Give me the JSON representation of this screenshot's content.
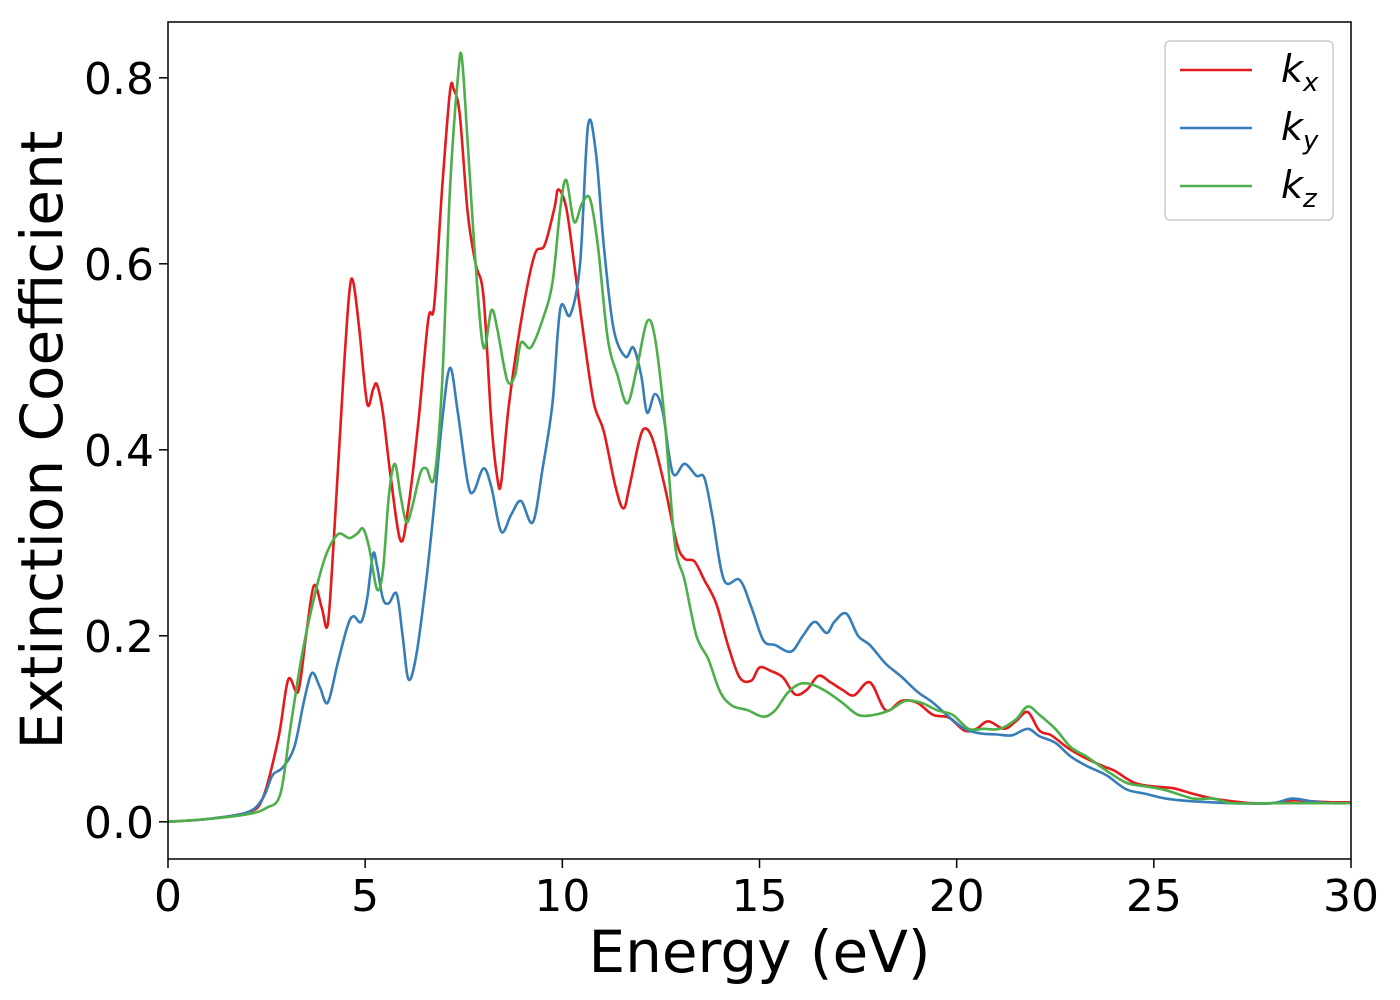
{
  "chart_data": {
    "type": "line",
    "title": "",
    "xlabel": "Energy (eV)",
    "ylabel": "Extinction Coefficient",
    "xlim": [
      0,
      30
    ],
    "ylim": [
      -0.04,
      0.86
    ],
    "xticks": [
      0,
      5,
      10,
      15,
      20,
      25,
      30
    ],
    "xtick_labels": [
      "0",
      "5",
      "10",
      "15",
      "20",
      "25",
      "30"
    ],
    "yticks": [
      0.0,
      0.2,
      0.4,
      0.6,
      0.8
    ],
    "ytick_labels": [
      "0.0",
      "0.2",
      "0.4",
      "0.6",
      "0.8"
    ],
    "grid": false,
    "legend_position": "top-right",
    "series": [
      {
        "name": "k",
        "subscript": "x",
        "color": "#e41a1c",
        "points": [
          [
            0,
            0.0
          ],
          [
            1,
            0.003
          ],
          [
            2,
            0.01
          ],
          [
            2.4,
            0.025
          ],
          [
            2.8,
            0.09
          ],
          [
            3.05,
            0.153
          ],
          [
            3.3,
            0.14
          ],
          [
            3.5,
            0.2
          ],
          [
            3.7,
            0.254
          ],
          [
            3.9,
            0.23
          ],
          [
            4.05,
            0.212
          ],
          [
            4.2,
            0.3
          ],
          [
            4.45,
            0.48
          ],
          [
            4.6,
            0.57
          ],
          [
            4.7,
            0.58
          ],
          [
            4.85,
            0.53
          ],
          [
            5.05,
            0.45
          ],
          [
            5.2,
            0.465
          ],
          [
            5.3,
            0.47
          ],
          [
            5.45,
            0.44
          ],
          [
            5.65,
            0.37
          ],
          [
            5.9,
            0.302
          ],
          [
            6.1,
            0.34
          ],
          [
            6.35,
            0.43
          ],
          [
            6.6,
            0.54
          ],
          [
            6.75,
            0.555
          ],
          [
            6.95,
            0.68
          ],
          [
            7.15,
            0.785
          ],
          [
            7.25,
            0.787
          ],
          [
            7.4,
            0.76
          ],
          [
            7.6,
            0.655
          ],
          [
            7.8,
            0.6
          ],
          [
            8.0,
            0.565
          ],
          [
            8.2,
            0.43
          ],
          [
            8.35,
            0.37
          ],
          [
            8.45,
            0.365
          ],
          [
            8.65,
            0.45
          ],
          [
            9.0,
            0.55
          ],
          [
            9.3,
            0.61
          ],
          [
            9.55,
            0.62
          ],
          [
            9.8,
            0.66
          ],
          [
            9.9,
            0.68
          ],
          [
            10.1,
            0.66
          ],
          [
            10.3,
            0.6
          ],
          [
            10.55,
            0.52
          ],
          [
            10.8,
            0.45
          ],
          [
            11.05,
            0.42
          ],
          [
            11.35,
            0.36
          ],
          [
            11.55,
            0.337
          ],
          [
            11.7,
            0.36
          ],
          [
            11.95,
            0.41
          ],
          [
            12.1,
            0.423
          ],
          [
            12.3,
            0.41
          ],
          [
            12.6,
            0.36
          ],
          [
            12.9,
            0.3
          ],
          [
            13.1,
            0.283
          ],
          [
            13.35,
            0.28
          ],
          [
            13.6,
            0.26
          ],
          [
            13.9,
            0.235
          ],
          [
            14.2,
            0.19
          ],
          [
            14.5,
            0.155
          ],
          [
            14.8,
            0.152
          ],
          [
            15.0,
            0.166
          ],
          [
            15.3,
            0.162
          ],
          [
            15.6,
            0.155
          ],
          [
            15.9,
            0.137
          ],
          [
            16.2,
            0.142
          ],
          [
            16.5,
            0.157
          ],
          [
            16.8,
            0.15
          ],
          [
            17.1,
            0.142
          ],
          [
            17.4,
            0.136
          ],
          [
            17.8,
            0.15
          ],
          [
            18.2,
            0.12
          ],
          [
            18.6,
            0.13
          ],
          [
            19.0,
            0.128
          ],
          [
            19.4,
            0.115
          ],
          [
            19.8,
            0.112
          ],
          [
            20.2,
            0.098
          ],
          [
            20.5,
            0.1
          ],
          [
            20.8,
            0.108
          ],
          [
            21.2,
            0.1
          ],
          [
            21.5,
            0.108
          ],
          [
            21.8,
            0.118
          ],
          [
            22.1,
            0.098
          ],
          [
            22.4,
            0.093
          ],
          [
            22.8,
            0.08
          ],
          [
            23.2,
            0.07
          ],
          [
            23.7,
            0.06
          ],
          [
            24.0,
            0.055
          ],
          [
            24.5,
            0.042
          ],
          [
            25.0,
            0.038
          ],
          [
            25.5,
            0.036
          ],
          [
            26.0,
            0.03
          ],
          [
            26.5,
            0.025
          ],
          [
            27.0,
            0.022
          ],
          [
            27.5,
            0.02
          ],
          [
            28.0,
            0.02
          ],
          [
            28.5,
            0.023
          ],
          [
            29.0,
            0.022
          ],
          [
            29.5,
            0.021
          ],
          [
            30.0,
            0.021
          ]
        ]
      },
      {
        "name": "k",
        "subscript": "y",
        "color": "#377eb8",
        "points": [
          [
            0,
            0.0
          ],
          [
            1,
            0.003
          ],
          [
            2,
            0.01
          ],
          [
            2.4,
            0.025
          ],
          [
            2.65,
            0.05
          ],
          [
            2.9,
            0.058
          ],
          [
            3.2,
            0.08
          ],
          [
            3.45,
            0.13
          ],
          [
            3.65,
            0.16
          ],
          [
            3.85,
            0.145
          ],
          [
            4.05,
            0.128
          ],
          [
            4.3,
            0.17
          ],
          [
            4.55,
            0.21
          ],
          [
            4.7,
            0.221
          ],
          [
            4.9,
            0.215
          ],
          [
            5.05,
            0.24
          ],
          [
            5.2,
            0.288
          ],
          [
            5.3,
            0.275
          ],
          [
            5.45,
            0.24
          ],
          [
            5.6,
            0.235
          ],
          [
            5.8,
            0.245
          ],
          [
            5.95,
            0.2
          ],
          [
            6.1,
            0.153
          ],
          [
            6.3,
            0.18
          ],
          [
            6.55,
            0.26
          ],
          [
            6.75,
            0.34
          ],
          [
            6.95,
            0.43
          ],
          [
            7.15,
            0.488
          ],
          [
            7.35,
            0.44
          ],
          [
            7.6,
            0.365
          ],
          [
            7.75,
            0.355
          ],
          [
            8.0,
            0.38
          ],
          [
            8.2,
            0.36
          ],
          [
            8.45,
            0.312
          ],
          [
            8.7,
            0.33
          ],
          [
            8.95,
            0.345
          ],
          [
            9.25,
            0.322
          ],
          [
            9.5,
            0.38
          ],
          [
            9.75,
            0.45
          ],
          [
            9.95,
            0.552
          ],
          [
            10.2,
            0.545
          ],
          [
            10.45,
            0.6
          ],
          [
            10.65,
            0.748
          ],
          [
            10.85,
            0.72
          ],
          [
            11.05,
            0.62
          ],
          [
            11.3,
            0.53
          ],
          [
            11.6,
            0.5
          ],
          [
            11.8,
            0.51
          ],
          [
            12.0,
            0.48
          ],
          [
            12.15,
            0.44
          ],
          [
            12.35,
            0.46
          ],
          [
            12.55,
            0.44
          ],
          [
            12.8,
            0.375
          ],
          [
            13.1,
            0.385
          ],
          [
            13.4,
            0.372
          ],
          [
            13.6,
            0.37
          ],
          [
            13.8,
            0.33
          ],
          [
            14.1,
            0.26
          ],
          [
            14.5,
            0.26
          ],
          [
            14.8,
            0.23
          ],
          [
            15.1,
            0.195
          ],
          [
            15.4,
            0.19
          ],
          [
            15.8,
            0.183
          ],
          [
            16.1,
            0.2
          ],
          [
            16.4,
            0.215
          ],
          [
            16.7,
            0.203
          ],
          [
            16.9,
            0.215
          ],
          [
            17.2,
            0.224
          ],
          [
            17.5,
            0.2
          ],
          [
            17.8,
            0.19
          ],
          [
            18.2,
            0.17
          ],
          [
            18.6,
            0.156
          ],
          [
            19.0,
            0.14
          ],
          [
            19.4,
            0.128
          ],
          [
            19.8,
            0.113
          ],
          [
            20.2,
            0.1
          ],
          [
            20.6,
            0.095
          ],
          [
            21.0,
            0.094
          ],
          [
            21.4,
            0.093
          ],
          [
            21.8,
            0.1
          ],
          [
            22.1,
            0.092
          ],
          [
            22.5,
            0.085
          ],
          [
            22.9,
            0.07
          ],
          [
            23.3,
            0.06
          ],
          [
            23.8,
            0.05
          ],
          [
            24.3,
            0.035
          ],
          [
            24.8,
            0.03
          ],
          [
            25.3,
            0.025
          ],
          [
            26.0,
            0.022
          ],
          [
            27.0,
            0.02
          ],
          [
            28.0,
            0.02
          ],
          [
            28.5,
            0.025
          ],
          [
            29.0,
            0.022
          ],
          [
            29.5,
            0.02
          ],
          [
            30.0,
            0.02
          ]
        ]
      },
      {
        "name": "k",
        "subscript": "z",
        "color": "#4daf4a",
        "points": [
          [
            0,
            0.0
          ],
          [
            1,
            0.003
          ],
          [
            2,
            0.008
          ],
          [
            2.5,
            0.015
          ],
          [
            2.85,
            0.03
          ],
          [
            3.1,
            0.1
          ],
          [
            3.4,
            0.18
          ],
          [
            3.7,
            0.24
          ],
          [
            3.95,
            0.28
          ],
          [
            4.15,
            0.3
          ],
          [
            4.35,
            0.31
          ],
          [
            4.6,
            0.305
          ],
          [
            4.8,
            0.31
          ],
          [
            4.95,
            0.315
          ],
          [
            5.1,
            0.295
          ],
          [
            5.3,
            0.25
          ],
          [
            5.45,
            0.27
          ],
          [
            5.6,
            0.35
          ],
          [
            5.75,
            0.385
          ],
          [
            5.9,
            0.35
          ],
          [
            6.05,
            0.322
          ],
          [
            6.2,
            0.34
          ],
          [
            6.4,
            0.375
          ],
          [
            6.55,
            0.38
          ],
          [
            6.75,
            0.37
          ],
          [
            6.95,
            0.47
          ],
          [
            7.15,
            0.68
          ],
          [
            7.35,
            0.8
          ],
          [
            7.45,
            0.822
          ],
          [
            7.6,
            0.73
          ],
          [
            7.8,
            0.6
          ],
          [
            8.0,
            0.51
          ],
          [
            8.2,
            0.55
          ],
          [
            8.35,
            0.53
          ],
          [
            8.6,
            0.475
          ],
          [
            8.8,
            0.48
          ],
          [
            8.95,
            0.515
          ],
          [
            9.2,
            0.51
          ],
          [
            9.5,
            0.54
          ],
          [
            9.75,
            0.58
          ],
          [
            9.95,
            0.66
          ],
          [
            10.1,
            0.69
          ],
          [
            10.3,
            0.645
          ],
          [
            10.5,
            0.665
          ],
          [
            10.7,
            0.67
          ],
          [
            10.9,
            0.62
          ],
          [
            11.15,
            0.52
          ],
          [
            11.4,
            0.48
          ],
          [
            11.65,
            0.45
          ],
          [
            11.9,
            0.49
          ],
          [
            12.15,
            0.538
          ],
          [
            12.35,
            0.52
          ],
          [
            12.6,
            0.43
          ],
          [
            12.85,
            0.3
          ],
          [
            13.1,
            0.26
          ],
          [
            13.4,
            0.2
          ],
          [
            13.7,
            0.175
          ],
          [
            14.0,
            0.14
          ],
          [
            14.3,
            0.125
          ],
          [
            14.7,
            0.12
          ],
          [
            15.1,
            0.113
          ],
          [
            15.4,
            0.12
          ],
          [
            15.7,
            0.138
          ],
          [
            16.0,
            0.148
          ],
          [
            16.3,
            0.148
          ],
          [
            16.7,
            0.14
          ],
          [
            17.1,
            0.128
          ],
          [
            17.5,
            0.115
          ],
          [
            17.9,
            0.115
          ],
          [
            18.3,
            0.12
          ],
          [
            18.7,
            0.13
          ],
          [
            19.1,
            0.128
          ],
          [
            19.5,
            0.12
          ],
          [
            19.9,
            0.115
          ],
          [
            20.3,
            0.1
          ],
          [
            20.7,
            0.1
          ],
          [
            21.1,
            0.1
          ],
          [
            21.5,
            0.11
          ],
          [
            21.8,
            0.124
          ],
          [
            22.1,
            0.115
          ],
          [
            22.5,
            0.1
          ],
          [
            22.9,
            0.08
          ],
          [
            23.3,
            0.07
          ],
          [
            23.8,
            0.055
          ],
          [
            24.3,
            0.042
          ],
          [
            24.8,
            0.038
          ],
          [
            25.3,
            0.034
          ],
          [
            26.0,
            0.025
          ],
          [
            26.5,
            0.025
          ],
          [
            27.0,
            0.02
          ],
          [
            28.0,
            0.02
          ],
          [
            29.0,
            0.02
          ],
          [
            30.0,
            0.02
          ]
        ]
      }
    ]
  }
}
